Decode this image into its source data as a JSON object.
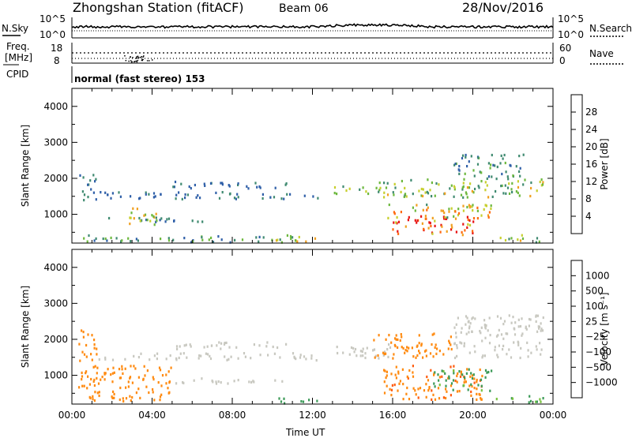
{
  "header": {
    "station": "Zhongshan Station (fitACF)",
    "beam": "Beam 06",
    "date": "28/Nov/2016"
  },
  "summary_panels": {
    "nsky_label": "N.Sky",
    "nsky_scale": [
      "10^5",
      "10^0"
    ],
    "nsearch_label": "N.Search",
    "freq_label": "Freq.",
    "freq_unit": "[MHz]",
    "freq_ticks": [
      "18",
      "8"
    ],
    "nave_label": "Nave",
    "nave_ticks": [
      "60",
      "0"
    ],
    "cpid_label": "CPID",
    "cpid_text": "normal (fast stereo) 153"
  },
  "chart_data": [
    {
      "type": "heatmap",
      "title": "",
      "xlabel": "Time UT",
      "ylabel": "Slant Range [km]",
      "x_ticks": [
        "00:00",
        "04:00",
        "08:00",
        "12:00",
        "16:00",
        "20:00",
        "00:00"
      ],
      "y_ticks": [
        1000,
        2000,
        3000,
        4000
      ],
      "ylim": [
        200,
        4500
      ],
      "xlim_hours": [
        0,
        24
      ],
      "colorbar_label": "Power [dB]",
      "colorbar_ticks": [
        4,
        8,
        12,
        16,
        20,
        24,
        28
      ],
      "colorbar_range": [
        0,
        30
      ],
      "colorbar_colors": [
        "#1530e0",
        "#2f5fa8",
        "#3f8a70",
        "#6db83e",
        "#c7cf2e",
        "#f0a020",
        "#ff6a10",
        "#e81515"
      ],
      "regions": [
        {
          "t": [
            0.3,
            1.2
          ],
          "r": [
            1400,
            2150
          ],
          "v": 8
        },
        {
          "t": [
            1.2,
            12.5
          ],
          "r": [
            1450,
            1650
          ],
          "v": 7
        },
        {
          "t": [
            1.5,
            6.5
          ],
          "r": [
            800,
            950
          ],
          "v": 8
        },
        {
          "t": [
            2.8,
            4.3
          ],
          "r": [
            700,
            1250
          ],
          "v": 17
        },
        {
          "t": [
            5.0,
            11.0
          ],
          "r": [
            1750,
            1950
          ],
          "v": 6
        },
        {
          "t": [
            0.5,
            11.0
          ],
          "r": [
            250,
            450
          ],
          "v": 10
        },
        {
          "t": [
            13.0,
            15.5
          ],
          "r": [
            1600,
            1850
          ],
          "v": 12
        },
        {
          "t": [
            15.0,
            23.5
          ],
          "r": [
            1500,
            2000
          ],
          "v": 14
        },
        {
          "t": [
            19.0,
            22.5
          ],
          "r": [
            2000,
            2700
          ],
          "v": 9
        },
        {
          "t": [
            15.8,
            20.5
          ],
          "r": [
            450,
            1000
          ],
          "v": 26
        },
        {
          "t": [
            15.5,
            21.0
          ],
          "r": [
            900,
            1300
          ],
          "v": 18
        },
        {
          "t": [
            21.0,
            23.5
          ],
          "r": [
            250,
            450
          ],
          "v": 15
        },
        {
          "t": [
            10.0,
            12.5
          ],
          "r": [
            250,
            400
          ],
          "v": 20
        }
      ]
    },
    {
      "type": "heatmap",
      "title": "",
      "xlabel": "Time UT",
      "ylabel": "Slant Range [km]",
      "x_ticks": [
        "00:00",
        "04:00",
        "08:00",
        "12:00",
        "16:00",
        "20:00",
        "00:00"
      ],
      "y_ticks": [
        1000,
        2000,
        3000,
        4000
      ],
      "ylim": [
        200,
        4500
      ],
      "xlim_hours": [
        0,
        24
      ],
      "colorbar_label": "Velocity [m s⁻¹]",
      "colorbar_ticks": [
        "1000",
        "500",
        "100",
        "25",
        "−25",
        "−100",
        "−500",
        "−1000"
      ],
      "colorbar_colors": [
        "#1545c8",
        "#2d7aa8",
        "#3c9a58",
        "#79c23f",
        "#c8c8c0",
        "#f5c36a",
        "#ff8a10",
        "#ff5c10",
        "#e81515"
      ],
      "regions": [
        {
          "t": [
            0.3,
            1.2
          ],
          "r": [
            1400,
            2300
          ],
          "v": -200
        },
        {
          "t": [
            1.2,
            12.5
          ],
          "r": [
            1450,
            1650
          ],
          "v": 0
        },
        {
          "t": [
            0.3,
            5.0
          ],
          "r": [
            300,
            1300
          ],
          "v": -300
        },
        {
          "t": [
            5.0,
            11.0
          ],
          "r": [
            1750,
            1950
          ],
          "v": 5
        },
        {
          "t": [
            5.0,
            11.0
          ],
          "r": [
            800,
            950
          ],
          "v": 0
        },
        {
          "t": [
            10.0,
            12.5
          ],
          "r": [
            250,
            400
          ],
          "v": 200
        },
        {
          "t": [
            13.0,
            16.0
          ],
          "r": [
            1500,
            1900
          ],
          "v": 0
        },
        {
          "t": [
            15.0,
            19.0
          ],
          "r": [
            1500,
            2200
          ],
          "v": -250
        },
        {
          "t": [
            19.0,
            23.5
          ],
          "r": [
            1500,
            2700
          ],
          "v": 0
        },
        {
          "t": [
            15.5,
            20.5
          ],
          "r": [
            350,
            1300
          ],
          "v": -400
        },
        {
          "t": [
            18.0,
            21.0
          ],
          "r": [
            600,
            1200
          ],
          "v": 150
        },
        {
          "t": [
            21.0,
            23.5
          ],
          "r": [
            250,
            450
          ],
          "v": 120
        }
      ]
    }
  ]
}
